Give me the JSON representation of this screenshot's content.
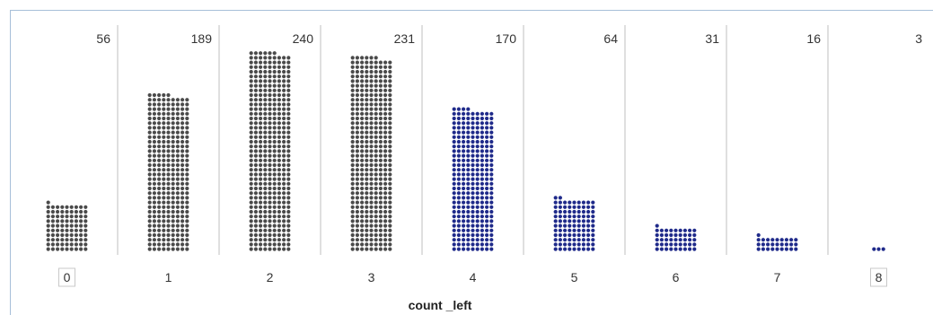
{
  "chart_data": {
    "type": "bar",
    "title": "",
    "xlabel": "count _left",
    "ylabel": "",
    "categories": [
      "0",
      "1",
      "2",
      "3",
      "4",
      "5",
      "6",
      "7",
      "8"
    ],
    "values": [
      56,
      189,
      240,
      231,
      170,
      64,
      31,
      16,
      3
    ],
    "ylim": [
      0,
      250
    ],
    "grid": false,
    "legend": "none",
    "selected_categories": [
      "0",
      "8"
    ]
  },
  "colors": {
    "unselected_dot": "#4a4a4a",
    "selected_dot": "#1f2a8a",
    "dot_outline": "#ffffff",
    "divider": "#bfbfbf",
    "frame": "#a7bfd9"
  }
}
